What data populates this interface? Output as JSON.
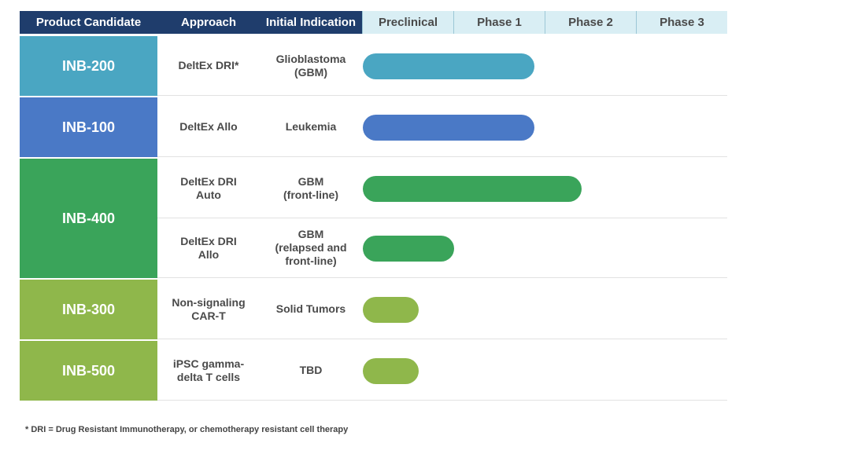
{
  "chart_data": {
    "type": "table",
    "headers": {
      "candidate": "Product Candidate",
      "approach": "Approach",
      "indication": "Initial Indication",
      "phases": [
        "Preclinical",
        "Phase 1",
        "Phase 2",
        "Phase 3"
      ]
    },
    "groups": [
      {
        "candidate": "INB-200",
        "color": "#4aa6c2",
        "rows": [
          {
            "approach": "DeltEx DRI*",
            "indication": "Glioblastoma\n(GBM)",
            "progress_phases": 1.88
          }
        ]
      },
      {
        "candidate": "INB-100",
        "color": "#4a79c6",
        "rows": [
          {
            "approach": "DeltEx Allo",
            "indication": "Leukemia",
            "progress_phases": 1.88
          }
        ]
      },
      {
        "candidate": "INB-400",
        "color": "#3aa45a",
        "rows": [
          {
            "approach": "DeltEx DRI\nAuto",
            "indication": "GBM\n(front-line)",
            "progress_phases": 2.4
          },
          {
            "approach": "DeltEx DRI\nAllo",
            "indication": "GBM\n(relapsed and\nfront-line)",
            "progress_phases": 1.0
          }
        ]
      },
      {
        "candidate": "INB-300",
        "color": "#8fb74b",
        "rows": [
          {
            "approach": "Non-signaling\nCAR-T",
            "indication": "Solid Tumors",
            "progress_phases": 0.61
          }
        ]
      },
      {
        "candidate": "INB-500",
        "color": "#8fb74b",
        "rows": [
          {
            "approach": "iPSC gamma-\ndelta T cells",
            "indication": "TBD",
            "progress_phases": 0.61
          }
        ]
      }
    ]
  },
  "footnote": "* DRI = Drug Resistant Immunotherapy, or chemotherapy resistant cell therapy"
}
